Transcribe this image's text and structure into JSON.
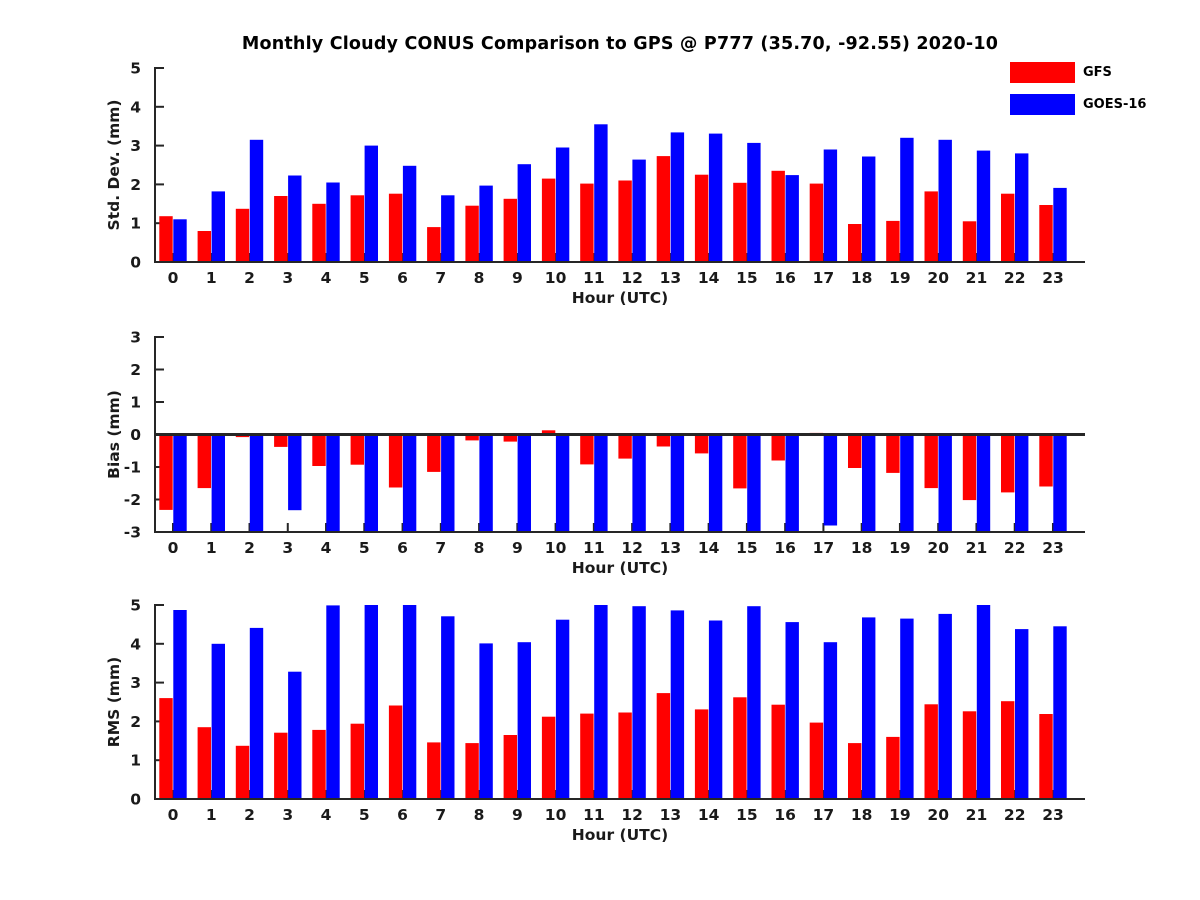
{
  "title": "Monthly Cloudy CONUS Comparison to GPS @ P777 (35.70, -92.55) 2020-10",
  "legend": {
    "entries": [
      {
        "label": "GFS",
        "color": "#ff0000"
      },
      {
        "label": "GOES-16",
        "color": "#0000ff"
      }
    ]
  },
  "colors": {
    "gfs": "#ff0000",
    "goes16": "#0000ff",
    "axis": "#262626",
    "text": "#1a1a1a"
  },
  "chart_data": [
    {
      "type": "bar",
      "title": "",
      "ylabel": "Std. Dev. (mm)",
      "xlabel": "Hour (UTC)",
      "ylim": [
        0,
        5
      ],
      "yticks": [
        0,
        1,
        2,
        3,
        4,
        5
      ],
      "grid": false,
      "legend_position": "top-right-outside",
      "categories": [
        0,
        1,
        2,
        3,
        4,
        5,
        6,
        7,
        8,
        9,
        10,
        11,
        12,
        13,
        14,
        15,
        16,
        17,
        18,
        19,
        20,
        21,
        22,
        23
      ],
      "series": [
        {
          "name": "GFS",
          "color": "#ff0000",
          "values": [
            1.18,
            0.8,
            1.37,
            1.7,
            1.5,
            1.72,
            1.76,
            0.9,
            1.45,
            1.63,
            2.15,
            2.02,
            2.1,
            2.73,
            2.25,
            2.04,
            2.35,
            2.02,
            0.98,
            1.06,
            1.82,
            1.05,
            1.76,
            1.47
          ]
        },
        {
          "name": "GOES-16",
          "color": "#0000ff",
          "values": [
            1.1,
            1.82,
            3.15,
            2.23,
            2.05,
            3.0,
            2.48,
            1.72,
            1.97,
            2.52,
            2.95,
            3.55,
            2.64,
            3.34,
            3.31,
            3.07,
            2.24,
            2.9,
            2.72,
            3.2,
            3.15,
            2.87,
            2.8,
            1.91
          ]
        }
      ]
    },
    {
      "type": "bar",
      "title": "",
      "ylabel": "Bias (mm)",
      "xlabel": "Hour (UTC)",
      "ylim": [
        -3,
        3
      ],
      "yticks": [
        3,
        2,
        1,
        0,
        -1,
        -2,
        -3
      ],
      "grid": false,
      "zero_line": true,
      "note": "GOES-16 bars at most hours extend to the axis minimum (clipped at -3)",
      "categories": [
        0,
        1,
        2,
        3,
        4,
        5,
        6,
        7,
        8,
        9,
        10,
        11,
        12,
        13,
        14,
        15,
        16,
        17,
        18,
        19,
        20,
        21,
        22,
        23
      ],
      "series": [
        {
          "name": "GFS",
          "color": "#ff0000",
          "values": [
            -2.32,
            -1.65,
            -0.08,
            -0.38,
            -0.97,
            -0.93,
            -1.63,
            -1.15,
            -0.18,
            -0.22,
            0.13,
            -0.92,
            -0.74,
            -0.37,
            -0.58,
            -1.66,
            -0.8,
            0.05,
            -1.03,
            -1.18,
            -1.65,
            -2.02,
            -1.78,
            -1.6
          ]
        },
        {
          "name": "GOES-16",
          "color": "#0000ff",
          "values": [
            -3,
            -3,
            -3,
            -2.33,
            -3,
            -3,
            -3,
            -3,
            -3,
            -3,
            -3,
            -3,
            -3,
            -3,
            -3,
            -3,
            -3,
            -2.8,
            -3,
            -3,
            -3,
            -3,
            -3,
            -3
          ]
        }
      ]
    },
    {
      "type": "bar",
      "title": "",
      "ylabel": "RMS (mm)",
      "xlabel": "Hour (UTC)",
      "ylim": [
        0,
        5
      ],
      "yticks": [
        0,
        1,
        2,
        3,
        4,
        5
      ],
      "grid": false,
      "categories": [
        0,
        1,
        2,
        3,
        4,
        5,
        6,
        7,
        8,
        9,
        10,
        11,
        12,
        13,
        14,
        15,
        16,
        17,
        18,
        19,
        20,
        21,
        22,
        23
      ],
      "series": [
        {
          "name": "GFS",
          "color": "#ff0000",
          "values": [
            2.6,
            1.85,
            1.37,
            1.71,
            1.78,
            1.94,
            2.41,
            1.46,
            1.44,
            1.65,
            2.12,
            2.2,
            2.23,
            2.73,
            2.31,
            2.62,
            2.43,
            1.97,
            1.44,
            1.6,
            2.44,
            2.26,
            2.52,
            2.19
          ]
        },
        {
          "name": "GOES-16",
          "color": "#0000ff",
          "values": [
            4.87,
            4.0,
            4.41,
            3.28,
            4.99,
            5.0,
            5.0,
            4.71,
            4.01,
            4.04,
            4.62,
            5.0,
            4.97,
            4.86,
            4.6,
            4.97,
            4.56,
            4.04,
            4.68,
            4.65,
            4.77,
            5.0,
            4.38,
            4.45
          ]
        }
      ]
    }
  ]
}
